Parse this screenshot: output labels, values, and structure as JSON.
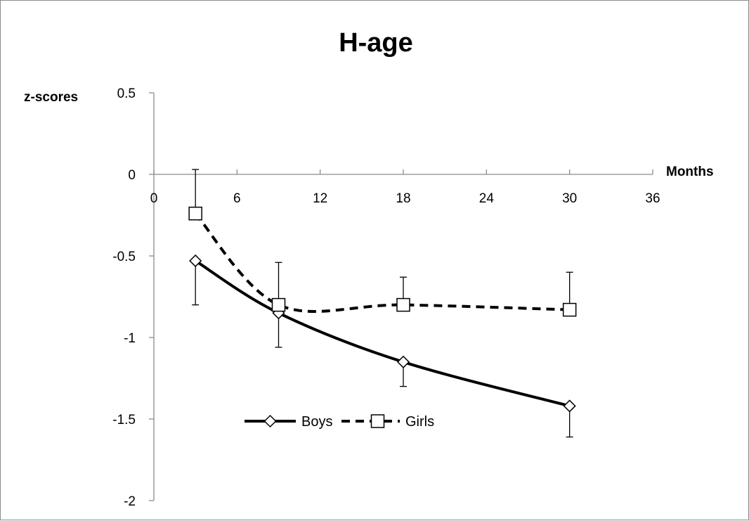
{
  "chart_data": {
    "type": "line",
    "title": "H-age",
    "xlabel": "Months",
    "ylabel": "z-scores",
    "xlim": [
      0,
      36
    ],
    "ylim": [
      -2,
      0.5
    ],
    "x_ticks": [
      "0",
      "6",
      "12",
      "18",
      "24",
      "30",
      "36"
    ],
    "y_ticks": [
      "0.5",
      "0",
      "-0.5",
      "-1",
      "-1.5",
      "-2"
    ],
    "grid": false,
    "legend_position": "bottom-center",
    "series": [
      {
        "name": "Boys",
        "line_style": "solid",
        "marker": "diamond",
        "color": "#000000",
        "x": [
          3,
          9,
          18,
          30
        ],
        "y": [
          -0.53,
          -0.85,
          -1.15,
          -1.42
        ],
        "error_lower": [
          -0.8,
          -1.06,
          -1.3,
          -1.61
        ],
        "error_upper": [
          null,
          null,
          null,
          null
        ]
      },
      {
        "name": "Girls",
        "line_style": "dashed",
        "marker": "square",
        "color": "#000000",
        "x": [
          3,
          9,
          18,
          30
        ],
        "y": [
          -0.24,
          -0.8,
          -0.8,
          -0.83
        ],
        "error_lower": [
          null,
          null,
          null,
          null
        ],
        "error_upper": [
          0.03,
          -0.54,
          -0.63,
          -0.6
        ]
      }
    ]
  }
}
